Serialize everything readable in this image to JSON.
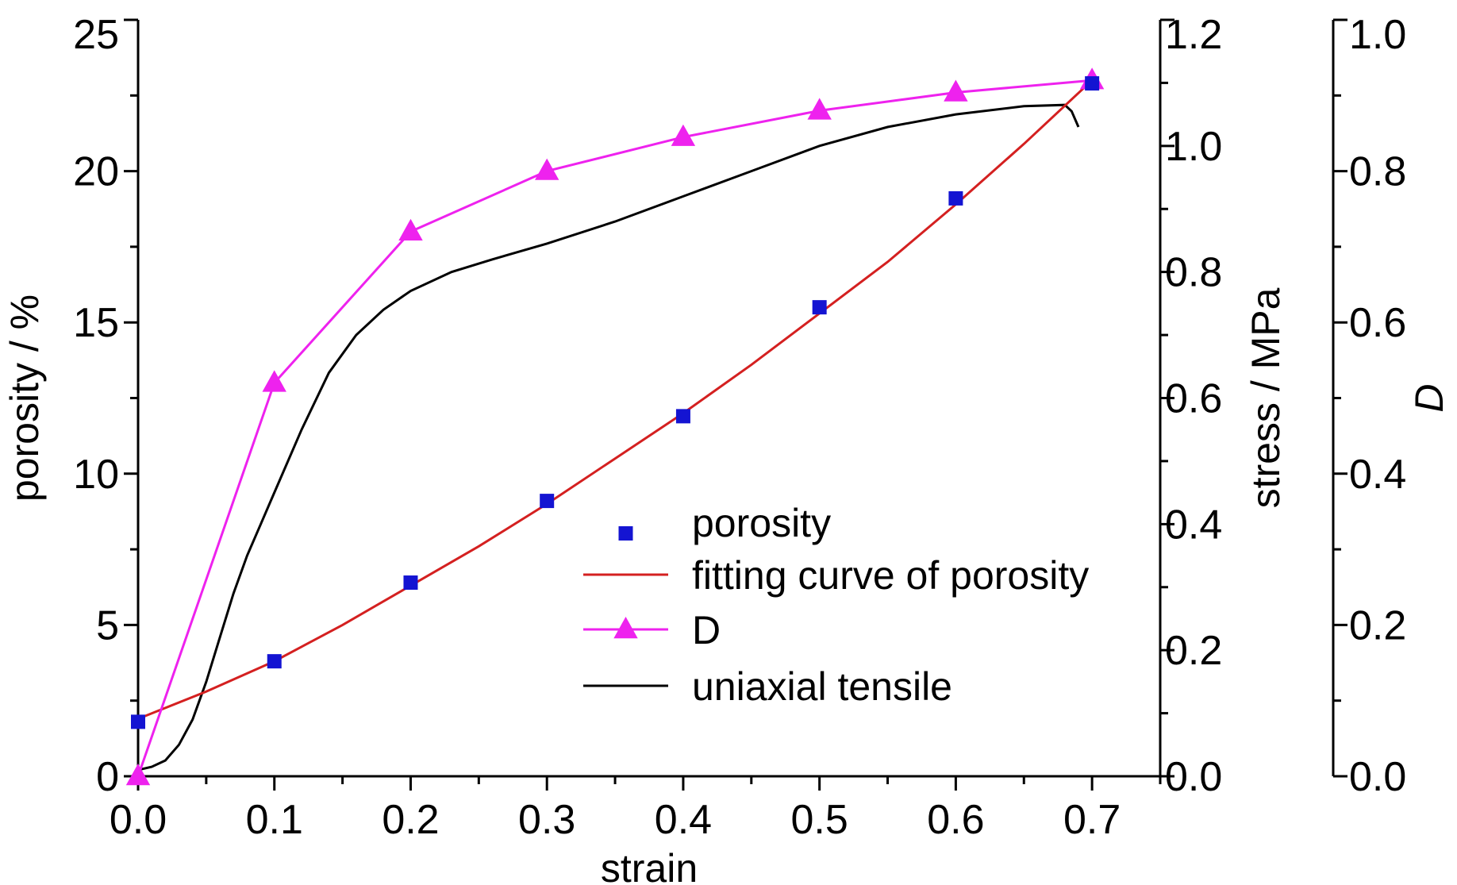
{
  "chart_data": {
    "type": "line",
    "xlabel": "strain",
    "x_ticks": [
      "0.0",
      "0.1",
      "0.2",
      "0.3",
      "0.4",
      "0.5",
      "0.6",
      "0.7"
    ],
    "xlim": [
      0.0,
      0.75
    ],
    "axes": {
      "porosity": {
        "label": "porosity / %",
        "ylim": [
          0,
          25
        ],
        "ticks": [
          "0",
          "5",
          "10",
          "15",
          "20",
          "25"
        ]
      },
      "stress": {
        "label": "stress / MPa",
        "ylim": [
          0.0,
          1.2
        ],
        "ticks": [
          "0.0",
          "0.2",
          "0.4",
          "0.6",
          "0.8",
          "1.0",
          "1.2"
        ]
      },
      "D": {
        "label": "D",
        "ylim": [
          0.0,
          1.0
        ],
        "ticks": [
          "0.0",
          "0.2",
          "0.4",
          "0.6",
          "0.8",
          "1.0"
        ]
      }
    },
    "series": [
      {
        "name": "porosity",
        "axis": "porosity",
        "marker": "square",
        "color": "#1414d2",
        "x": [
          0.0,
          0.1,
          0.2,
          0.3,
          0.4,
          0.5,
          0.6,
          0.7
        ],
        "y": [
          1.8,
          3.8,
          6.4,
          9.1,
          11.9,
          15.5,
          19.1,
          22.9
        ]
      },
      {
        "name": "fitting curve of porosity",
        "axis": "porosity",
        "marker": "none",
        "color": "#d42020",
        "x": [
          0.0,
          0.05,
          0.1,
          0.15,
          0.2,
          0.25,
          0.3,
          0.35,
          0.4,
          0.45,
          0.5,
          0.55,
          0.6,
          0.65,
          0.7
        ],
        "y": [
          1.9,
          2.8,
          3.8,
          5.0,
          6.3,
          7.6,
          9.0,
          10.5,
          12.0,
          13.6,
          15.3,
          17.0,
          18.9,
          20.9,
          23.0
        ]
      },
      {
        "name": "D",
        "axis": "D",
        "marker": "triangle",
        "color": "#ee22ee",
        "x": [
          0.0,
          0.1,
          0.2,
          0.3,
          0.4,
          0.5,
          0.6,
          0.7
        ],
        "y": [
          0.0,
          0.52,
          0.72,
          0.8,
          0.845,
          0.88,
          0.904,
          0.92
        ]
      },
      {
        "name": "uniaxial tensile",
        "axis": "stress",
        "marker": "none",
        "color": "#000000",
        "x": [
          0.0,
          0.01,
          0.02,
          0.03,
          0.04,
          0.05,
          0.06,
          0.07,
          0.08,
          0.09,
          0.1,
          0.12,
          0.14,
          0.16,
          0.18,
          0.2,
          0.23,
          0.26,
          0.3,
          0.35,
          0.4,
          0.45,
          0.5,
          0.55,
          0.6,
          0.65,
          0.68,
          0.685,
          0.69
        ],
        "y": [
          0.01,
          0.015,
          0.025,
          0.05,
          0.09,
          0.15,
          0.22,
          0.29,
          0.35,
          0.4,
          0.45,
          0.55,
          0.64,
          0.7,
          0.74,
          0.77,
          0.8,
          0.82,
          0.845,
          0.88,
          0.92,
          0.96,
          1.0,
          1.03,
          1.05,
          1.063,
          1.065,
          1.055,
          1.03
        ]
      }
    ],
    "legend": {
      "position": "center-right",
      "entries": [
        "porosity",
        "fitting curve of porosity",
        "D",
        "uniaxial tensile"
      ]
    }
  }
}
